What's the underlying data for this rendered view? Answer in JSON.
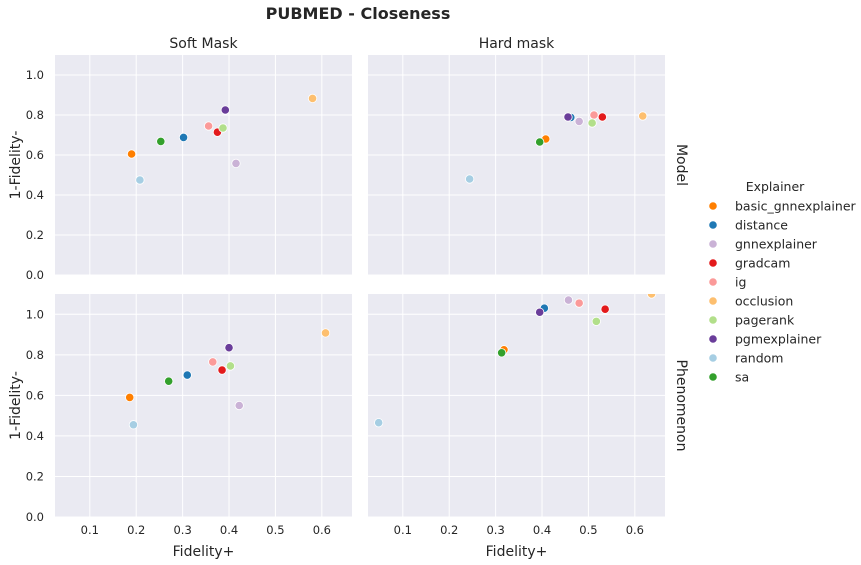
{
  "title": "PUBMED - Closeness",
  "chart_data": {
    "type": "scatter",
    "title": "PUBMED - Closeness",
    "xlabel": "Fidelity+",
    "ylabel": "1-Fidelity-",
    "xlim": [
      0.025,
      0.665
    ],
    "ylim": [
      0.0,
      1.1
    ],
    "xticks": [
      "0.1",
      "0.2",
      "0.3",
      "0.4",
      "0.5",
      "0.6"
    ],
    "yticks": [
      "0.0",
      "0.2",
      "0.4",
      "0.6",
      "0.8",
      "1.0"
    ],
    "grid": true,
    "columns": [
      "Soft Mask",
      "Hard mask"
    ],
    "rows": [
      "Model",
      "Phenomenon"
    ],
    "legend": {
      "title": "Explainer",
      "placement": "right",
      "entries": [
        {
          "name": "basic_gnnexplainer",
          "color": "#ff7f00"
        },
        {
          "name": "distance",
          "color": "#1f78b4"
        },
        {
          "name": "gnnexplainer",
          "color": "#cab2d6"
        },
        {
          "name": "gradcam",
          "color": "#e31a1c"
        },
        {
          "name": "ig",
          "color": "#fb9a99"
        },
        {
          "name": "occlusion",
          "color": "#fdbf6f"
        },
        {
          "name": "pagerank",
          "color": "#b2df8a"
        },
        {
          "name": "pgmexplainer",
          "color": "#6a3d9a"
        },
        {
          "name": "random",
          "color": "#a6cee3"
        },
        {
          "name": "sa",
          "color": "#33a02c"
        }
      ]
    },
    "panels": [
      {
        "column": "Soft Mask",
        "row": "Model",
        "points": [
          {
            "series": "basic_gnnexplainer",
            "x": 0.19,
            "y": 0.605
          },
          {
            "series": "distance",
            "x": 0.302,
            "y": 0.688
          },
          {
            "series": "gnnexplainer",
            "x": 0.415,
            "y": 0.558
          },
          {
            "series": "gradcam",
            "x": 0.375,
            "y": 0.714
          },
          {
            "series": "ig",
            "x": 0.356,
            "y": 0.745
          },
          {
            "series": "occlusion",
            "x": 0.58,
            "y": 0.883
          },
          {
            "series": "pagerank",
            "x": 0.387,
            "y": 0.735
          },
          {
            "series": "pgmexplainer",
            "x": 0.392,
            "y": 0.825
          },
          {
            "series": "random",
            "x": 0.208,
            "y": 0.475
          },
          {
            "series": "sa",
            "x": 0.253,
            "y": 0.668
          }
        ]
      },
      {
        "column": "Hard mask",
        "row": "Model",
        "points": [
          {
            "series": "basic_gnnexplainer",
            "x": 0.408,
            "y": 0.68
          },
          {
            "series": "distance",
            "x": 0.462,
            "y": 0.788
          },
          {
            "series": "gnnexplainer",
            "x": 0.48,
            "y": 0.768
          },
          {
            "series": "gradcam",
            "x": 0.53,
            "y": 0.79
          },
          {
            "series": "ig",
            "x": 0.512,
            "y": 0.8
          },
          {
            "series": "occlusion",
            "x": 0.617,
            "y": 0.795
          },
          {
            "series": "pagerank",
            "x": 0.508,
            "y": 0.76
          },
          {
            "series": "pgmexplainer",
            "x": 0.456,
            "y": 0.79
          },
          {
            "series": "random",
            "x": 0.244,
            "y": 0.48
          },
          {
            "series": "sa",
            "x": 0.395,
            "y": 0.665
          }
        ]
      },
      {
        "column": "Soft Mask",
        "row": "Phenomenon",
        "points": [
          {
            "series": "basic_gnnexplainer",
            "x": 0.186,
            "y": 0.59
          },
          {
            "series": "distance",
            "x": 0.31,
            "y": 0.7
          },
          {
            "series": "gnnexplainer",
            "x": 0.422,
            "y": 0.55
          },
          {
            "series": "gradcam",
            "x": 0.385,
            "y": 0.725
          },
          {
            "series": "ig",
            "x": 0.365,
            "y": 0.765
          },
          {
            "series": "occlusion",
            "x": 0.608,
            "y": 0.908
          },
          {
            "series": "pagerank",
            "x": 0.403,
            "y": 0.745
          },
          {
            "series": "pgmexplainer",
            "x": 0.4,
            "y": 0.835
          },
          {
            "series": "random",
            "x": 0.194,
            "y": 0.455
          },
          {
            "series": "sa",
            "x": 0.27,
            "y": 0.67
          }
        ]
      },
      {
        "column": "Hard mask",
        "row": "Phenomenon",
        "points": [
          {
            "series": "basic_gnnexplainer",
            "x": 0.318,
            "y": 0.825
          },
          {
            "series": "distance",
            "x": 0.405,
            "y": 1.03
          },
          {
            "series": "gnnexplainer",
            "x": 0.457,
            "y": 1.07
          },
          {
            "series": "gradcam",
            "x": 0.536,
            "y": 1.025
          },
          {
            "series": "ig",
            "x": 0.48,
            "y": 1.055
          },
          {
            "series": "occlusion",
            "x": 0.636,
            "y": 1.1
          },
          {
            "series": "pagerank",
            "x": 0.517,
            "y": 0.965
          },
          {
            "series": "pgmexplainer",
            "x": 0.395,
            "y": 1.01
          },
          {
            "series": "random",
            "x": 0.048,
            "y": 0.465
          },
          {
            "series": "sa",
            "x": 0.313,
            "y": 0.81
          }
        ]
      }
    ]
  }
}
